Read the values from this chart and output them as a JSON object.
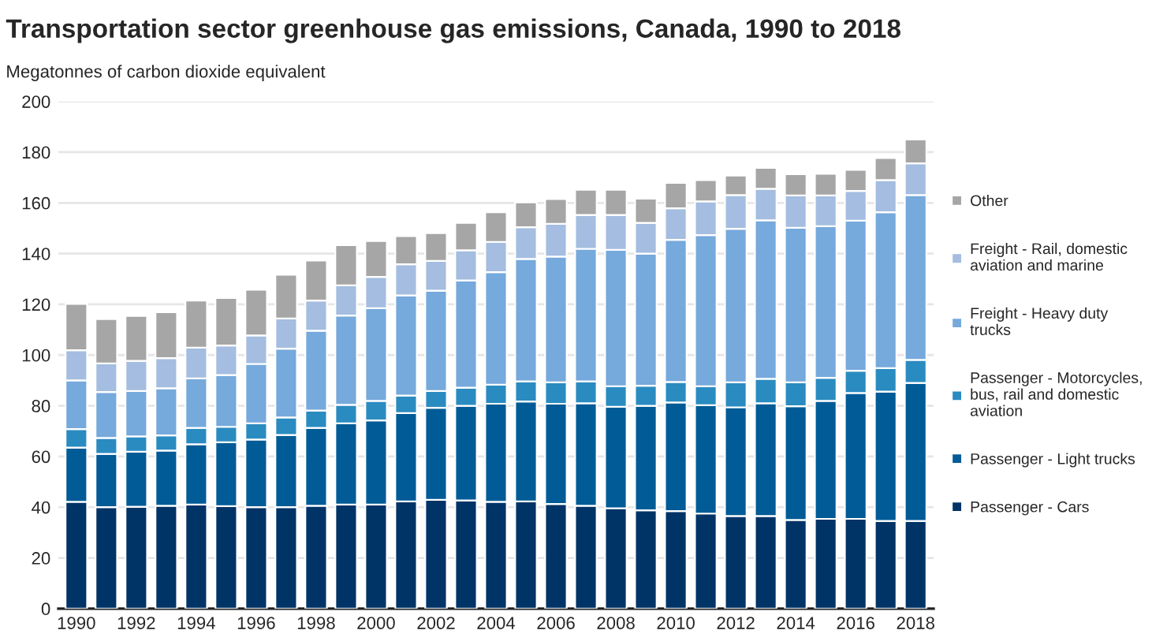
{
  "chart_data": {
    "type": "bar",
    "title": "Transportation sector greenhouse gas emissions, Canada, 1990 to 2018",
    "ylabel": "Megatonnes of carbon dioxide equivalent",
    "categories": [
      "1990",
      null,
      "1992",
      null,
      "1994",
      null,
      "1996",
      null,
      "1998",
      null,
      "2000",
      null,
      "2002",
      null,
      "2004",
      null,
      "2006",
      null,
      "2008",
      null,
      "2010",
      null,
      "2012",
      null,
      "2014",
      null,
      "2016",
      null,
      "2018"
    ],
    "stacked": true,
    "ylim": [
      0,
      200
    ],
    "yticks": [
      0,
      20,
      40,
      60,
      80,
      100,
      120,
      140,
      160,
      180,
      200
    ],
    "grid": "y",
    "legend": "right",
    "series": [
      {
        "name": "Passenger - Cars",
        "color": "#003366",
        "values": [
          42.1,
          40.0,
          40.2,
          40.6,
          41.0,
          40.4,
          40.0,
          40.0,
          40.6,
          41.0,
          41.0,
          42.3,
          42.9,
          42.7,
          42.1,
          42.3,
          41.3,
          40.6,
          39.6,
          38.8,
          38.5,
          37.5,
          36.5,
          36.5,
          35.0,
          35.4,
          35.4,
          34.6,
          34.6
        ]
      },
      {
        "name": "Passenger - Light trucks",
        "color": "#005b96",
        "values": [
          21.4,
          21.0,
          21.7,
          21.7,
          23.8,
          25.2,
          26.7,
          28.5,
          30.7,
          32.1,
          33.2,
          34.8,
          36.3,
          37.3,
          38.7,
          39.4,
          39.5,
          40.4,
          40.0,
          41.2,
          42.8,
          42.7,
          42.9,
          44.5,
          44.8,
          46.5,
          49.6,
          51.0,
          54.4
        ]
      },
      {
        "name": "Passenger - Motorcycles, bus, rail and domestic aviation",
        "color": "#2a8bc0",
        "values": [
          7.3,
          6.3,
          6.0,
          6.0,
          6.5,
          6.1,
          6.4,
          6.9,
          6.8,
          7.3,
          7.7,
          6.9,
          6.6,
          7.1,
          7.5,
          7.9,
          8.4,
          8.6,
          8.1,
          7.9,
          8.1,
          7.5,
          9.8,
          9.6,
          9.4,
          9.1,
          8.8,
          9.2,
          9.1
        ]
      },
      {
        "name": "Freight - Heavy duty trucks",
        "color": "#76a9dc",
        "values": [
          19.2,
          18.1,
          17.9,
          18.6,
          19.5,
          20.4,
          23.4,
          27.1,
          31.5,
          35.2,
          36.6,
          39.5,
          39.6,
          42.3,
          44.4,
          48.3,
          49.6,
          52.3,
          53.8,
          52.1,
          56.0,
          59.6,
          60.6,
          62.5,
          61.0,
          59.8,
          59.2,
          61.5,
          65.0
        ]
      },
      {
        "name": "Freight - Rail, domestic aviation and marine",
        "color": "#a4bde0",
        "values": [
          11.9,
          11.3,
          11.9,
          11.9,
          12.1,
          11.7,
          11.2,
          11.9,
          11.9,
          11.9,
          12.3,
          12.3,
          11.7,
          11.9,
          11.9,
          12.5,
          12.9,
          13.3,
          13.7,
          12.1,
          12.5,
          13.3,
          13.3,
          12.5,
          12.7,
          12.1,
          11.7,
          12.7,
          12.5
        ]
      },
      {
        "name": "Other",
        "color": "#a6a6a6",
        "values": [
          18.3,
          17.5,
          17.7,
          18.1,
          18.6,
          18.7,
          18.1,
          17.3,
          15.8,
          15.8,
          14.2,
          11.1,
          11.0,
          10.8,
          11.7,
          9.8,
          9.8,
          10.0,
          10.0,
          9.6,
          10.0,
          8.4,
          7.7,
          8.2,
          8.4,
          8.6,
          8.3,
          8.7,
          9.4
        ]
      }
    ]
  }
}
